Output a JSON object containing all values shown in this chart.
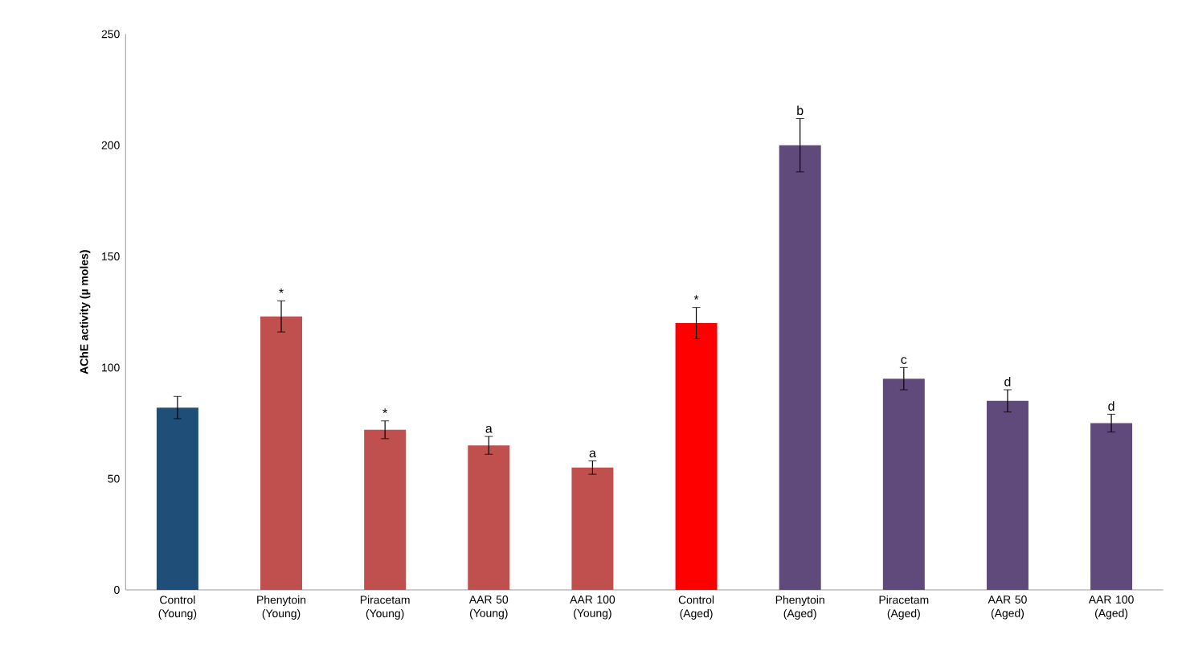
{
  "chart_data": {
    "type": "bar",
    "ylabel": "AChE activity (µ moles)",
    "categories": [
      "Control (Young)",
      "Phenytoin (Young)",
      "Piracetam (Young)",
      "AAR 50 (Young)",
      "AAR 100 (Young)",
      "Control (Aged)",
      "Phenytoin (Aged)",
      "Piracetam (Aged)",
      "AAR 50 (Aged)",
      "AAR 100 (Aged)"
    ],
    "values": [
      82,
      123,
      72,
      65,
      55,
      120,
      200,
      95,
      85,
      75
    ],
    "errors": [
      5,
      7,
      4,
      4,
      3,
      7,
      12,
      5,
      5,
      4
    ],
    "colors": [
      "#1f4e79",
      "#c0504d",
      "#c0504d",
      "#c0504d",
      "#c0504d",
      "#ff0000",
      "#604a7b",
      "#604a7b",
      "#604a7b",
      "#604a7b"
    ],
    "ylim": [
      0,
      250
    ],
    "yticks": [
      0,
      50,
      100,
      150,
      200,
      250
    ],
    "grid": false,
    "annotations": [
      {
        "text": "*",
        "x": "Phenytoin (Young)",
        "y": 130
      },
      {
        "text": "*",
        "x": "Piracetam (Young)",
        "y": 76
      },
      {
        "text": "a",
        "x": "AAR 50 (Young)",
        "y": 69
      },
      {
        "text": "a",
        "x": "AAR 100 (Young)",
        "y": 58
      },
      {
        "text": "*",
        "x": "Control (Aged)",
        "y": 127
      },
      {
        "text": "b",
        "x": "Phenytoin (Aged)",
        "y": 212
      },
      {
        "text": "c",
        "x": "Piracetam (Aged)",
        "y": 100
      },
      {
        "text": "d",
        "x": "AAR 50 (Aged)",
        "y": 90
      },
      {
        "text": "d",
        "x": "AAR 100 (Aged)",
        "y": 79
      }
    ]
  }
}
